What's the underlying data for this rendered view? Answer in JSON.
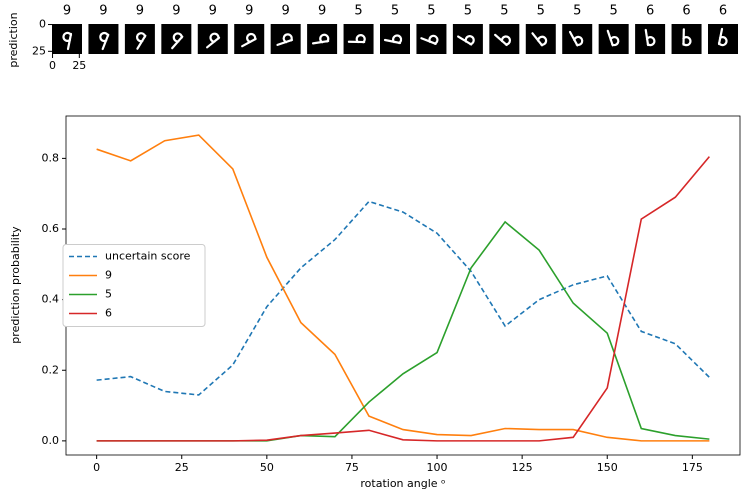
{
  "chart_data": [
    {
      "type": "image-strip",
      "ylabel": "prediction",
      "categories": [
        "9",
        "9",
        "9",
        "9",
        "9",
        "9",
        "9",
        "9",
        "5",
        "5",
        "5",
        "5",
        "5",
        "5",
        "5",
        "5",
        "6",
        "6",
        "6"
      ],
      "xlim": [
        -0.5,
        27.5
      ],
      "ylim": [
        -0.5,
        27.5
      ],
      "xticks": [
        0,
        25
      ],
      "yticks": [
        0,
        25
      ]
    },
    {
      "type": "line",
      "xlabel": "rotation angle ᵒ",
      "ylabel": "prediction probability",
      "x": [
        0,
        10,
        20,
        30,
        40,
        50,
        60,
        70,
        80,
        90,
        100,
        110,
        120,
        130,
        140,
        150,
        160,
        170,
        180
      ],
      "xlim": [
        -9,
        189
      ],
      "ylim": [
        -0.04,
        0.92
      ],
      "xticks": [
        0,
        25,
        50,
        75,
        100,
        125,
        150,
        175
      ],
      "yticks": [
        {
          "value": 0,
          "label": "0.0"
        },
        {
          "value": 0.2,
          "label": "0.2"
        },
        {
          "value": 0.4,
          "label": "0.4"
        },
        {
          "value": 0.6,
          "label": "0.6"
        },
        {
          "value": 0.8,
          "label": "0.8"
        }
      ],
      "legend": "center left",
      "series": [
        {
          "name": "uncertain score",
          "color": "#1f77b4",
          "dashed": true,
          "values": [
            0.172,
            0.182,
            0.14,
            0.13,
            0.215,
            0.38,
            0.49,
            0.57,
            0.678,
            0.648,
            0.588,
            0.48,
            0.325,
            0.4,
            0.442,
            0.467,
            0.31,
            0.275,
            0.18
          ]
        },
        {
          "name": "9",
          "color": "#ff7f0e",
          "values": [
            0.826,
            0.793,
            0.85,
            0.866,
            0.77,
            0.52,
            0.335,
            0.245,
            0.07,
            0.032,
            0.018,
            0.015,
            0.035,
            0.032,
            0.032,
            0.01,
            0.0,
            0.0,
            0.0
          ]
        },
        {
          "name": "5",
          "color": "#2ca02c",
          "values": [
            0,
            0,
            0,
            0,
            0,
            0,
            0.015,
            0.012,
            0.11,
            0.19,
            0.25,
            0.49,
            0.62,
            0.54,
            0.39,
            0.305,
            0.035,
            0.015,
            0.005
          ]
        },
        {
          "name": "6",
          "color": "#d62728",
          "values": [
            0,
            0,
            0,
            0,
            0,
            0.002,
            0.015,
            0.022,
            0.03,
            0.003,
            0,
            0,
            0,
            0,
            0.01,
            0.15,
            0.628,
            0.69,
            0.805
          ]
        }
      ]
    }
  ]
}
